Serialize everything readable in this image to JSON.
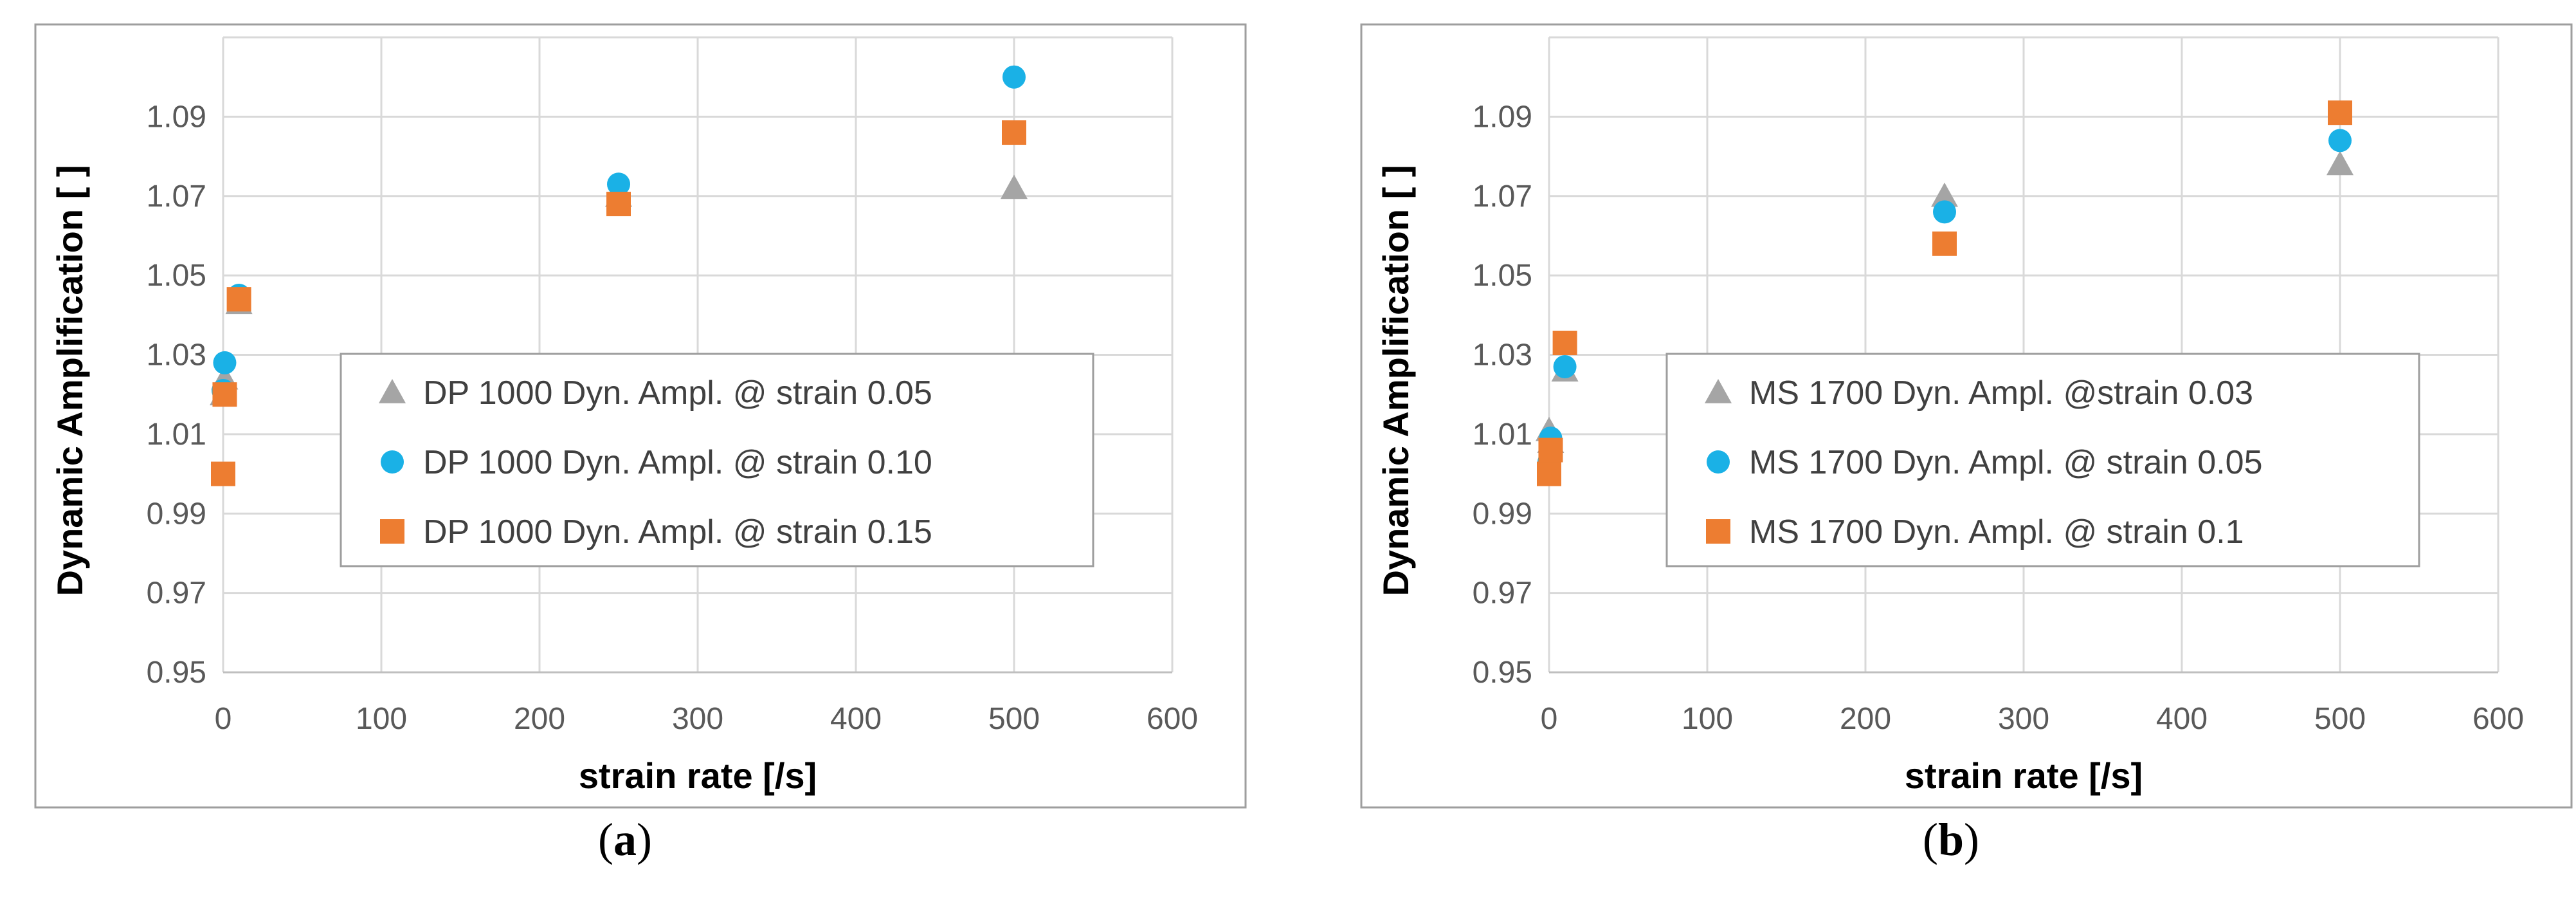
{
  "chart_data": [
    {
      "id": "a",
      "type": "scatter",
      "panel_label": "a",
      "xlabel": "strain rate [/s]",
      "ylabel": "Dynamic Amplification [ ]",
      "xlim": [
        0,
        600
      ],
      "ylim": [
        0.95,
        1.11
      ],
      "xticks": [
        0,
        100,
        200,
        300,
        400,
        500,
        600
      ],
      "yticks": [
        0.95,
        0.97,
        0.99,
        1.01,
        1.03,
        1.05,
        1.07,
        1.09
      ],
      "ytick_labels": [
        "0.95",
        "0.97",
        "0.99",
        "1.01",
        "1.03",
        "1.05",
        "1.07",
        "1.09"
      ],
      "grid": true,
      "legend_position": "center-right",
      "series": [
        {
          "name": "DP 1000 Dyn. Ampl. @ strain 0.05",
          "marker": "triangle",
          "color": "#a5a5a5",
          "points": [
            [
              0,
              1.02
            ],
            [
              1,
              1.024
            ],
            [
              10,
              1.043
            ],
            [
              250,
              1.07
            ],
            [
              500,
              1.072
            ]
          ]
        },
        {
          "name": "DP 1000 Dyn. Ampl. @ strain 0.10",
          "marker": "circle",
          "color": "#1ab1e6",
          "points": [
            [
              0,
              1.021
            ],
            [
              1,
              1.028
            ],
            [
              10,
              1.045
            ],
            [
              250,
              1.073
            ],
            [
              500,
              1.1
            ]
          ]
        },
        {
          "name": "DP 1000 Dyn. Ampl. @ strain 0.15",
          "marker": "square",
          "color": "#ed7d31",
          "points": [
            [
              0,
              1.0
            ],
            [
              1,
              1.02
            ],
            [
              10,
              1.044
            ],
            [
              250,
              1.068
            ],
            [
              500,
              1.086
            ]
          ]
        }
      ]
    },
    {
      "id": "b",
      "type": "scatter",
      "panel_label": "b",
      "xlabel": "strain rate [/s]",
      "ylabel": "Dynamic Amplification [ ]",
      "xlim": [
        0,
        600
      ],
      "ylim": [
        0.95,
        1.11
      ],
      "xticks": [
        0,
        100,
        200,
        300,
        400,
        500,
        600
      ],
      "yticks": [
        0.95,
        0.97,
        0.99,
        1.01,
        1.03,
        1.05,
        1.07,
        1.09
      ],
      "ytick_labels": [
        "0.95",
        "0.97",
        "0.99",
        "1.01",
        "1.03",
        "1.05",
        "1.07",
        "1.09"
      ],
      "grid": true,
      "legend_position": "center-right",
      "series": [
        {
          "name": "MS 1700 Dyn. Ampl. @strain 0.03",
          "marker": "triangle",
          "color": "#a5a5a5",
          "points": [
            [
              0,
              1.011
            ],
            [
              1,
              1.008
            ],
            [
              10,
              1.026
            ],
            [
              250,
              1.07
            ],
            [
              500,
              1.078
            ]
          ]
        },
        {
          "name": "MS 1700 Dyn. Ampl.  @ strain 0.05",
          "marker": "circle",
          "color": "#1ab1e6",
          "points": [
            [
              0,
              1.003
            ],
            [
              1,
              1.009
            ],
            [
              10,
              1.027
            ],
            [
              250,
              1.066
            ],
            [
              500,
              1.084
            ]
          ]
        },
        {
          "name": "MS 1700 Dyn. Ampl.  @ strain 0.1",
          "marker": "square",
          "color": "#ed7d31",
          "points": [
            [
              0,
              1.0
            ],
            [
              1,
              1.006
            ],
            [
              10,
              1.033
            ],
            [
              250,
              1.058
            ],
            [
              500,
              1.091
            ]
          ]
        }
      ]
    }
  ]
}
